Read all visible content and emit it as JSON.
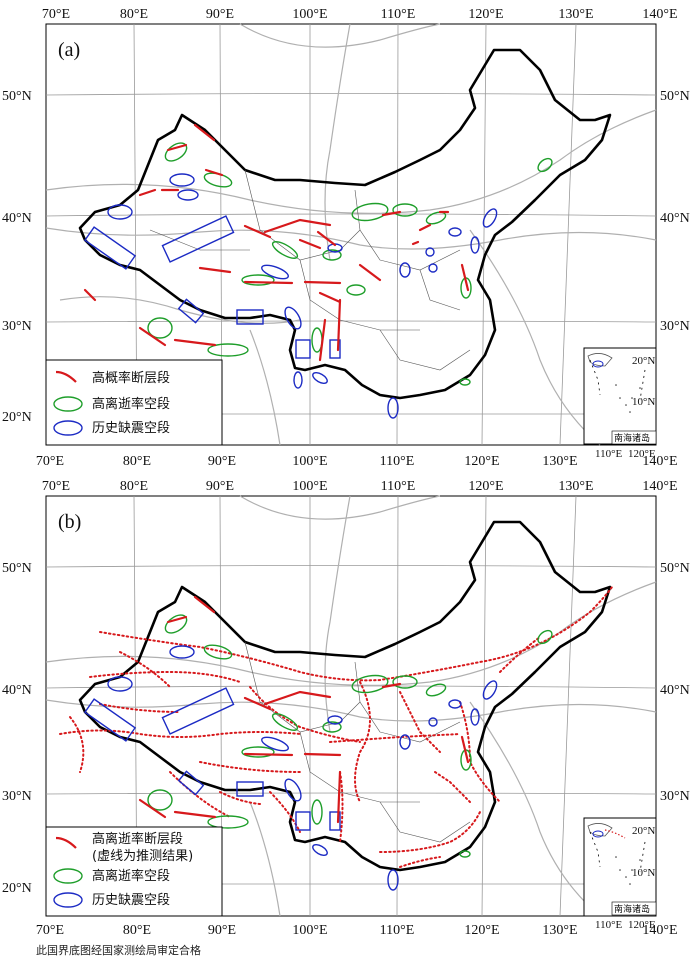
{
  "panels": [
    {
      "label": "(a)",
      "lon_ticks": [
        "70°E",
        "80°E",
        "90°E",
        "100°E",
        "110°E",
        "120°E",
        "130°E",
        "140°E"
      ],
      "lat_ticks": [
        "50°N",
        "40°N",
        "30°N",
        "20°N"
      ],
      "legend": [
        {
          "symbol": "red-fault-segment",
          "text": "高概率断层段"
        },
        {
          "symbol": "green-ellipse",
          "text": "高离逝率空段"
        },
        {
          "symbol": "blue-ellipse",
          "text": "历史缺震空段"
        }
      ],
      "inset": {
        "lat_ticks": [
          "20°N",
          "10°N"
        ],
        "lon_ticks": [
          "110°E",
          "120°E"
        ],
        "label": "南海诸岛"
      }
    },
    {
      "label": "(b)",
      "lon_ticks": [
        "70°E",
        "80°E",
        "90°E",
        "100°E",
        "110°E",
        "120°E",
        "130°E",
        "140°E"
      ],
      "lat_ticks": [
        "50°N",
        "40°N",
        "30°N",
        "20°N"
      ],
      "legend": [
        {
          "symbol": "red-fault-segment",
          "text": "高离逝率断层段"
        },
        {
          "symbol": "none",
          "text": "(虚线为推测结果)"
        },
        {
          "symbol": "green-ellipse",
          "text": "高离逝率空段"
        },
        {
          "symbol": "blue-ellipse",
          "text": "历史缺震空段"
        }
      ],
      "inset": {
        "lat_ticks": [
          "20°N",
          "10°N"
        ],
        "lon_ticks": [
          "110°E",
          "120°E"
        ],
        "label": "南海诸岛"
      }
    }
  ],
  "footer": "此国界底图经国家测绘局审定合格",
  "colors": {
    "fault": "#d7191c",
    "green": "#1e9e2a",
    "blue": "#1c2bc4",
    "border": "#000000",
    "grid": "#9a9a9a"
  }
}
